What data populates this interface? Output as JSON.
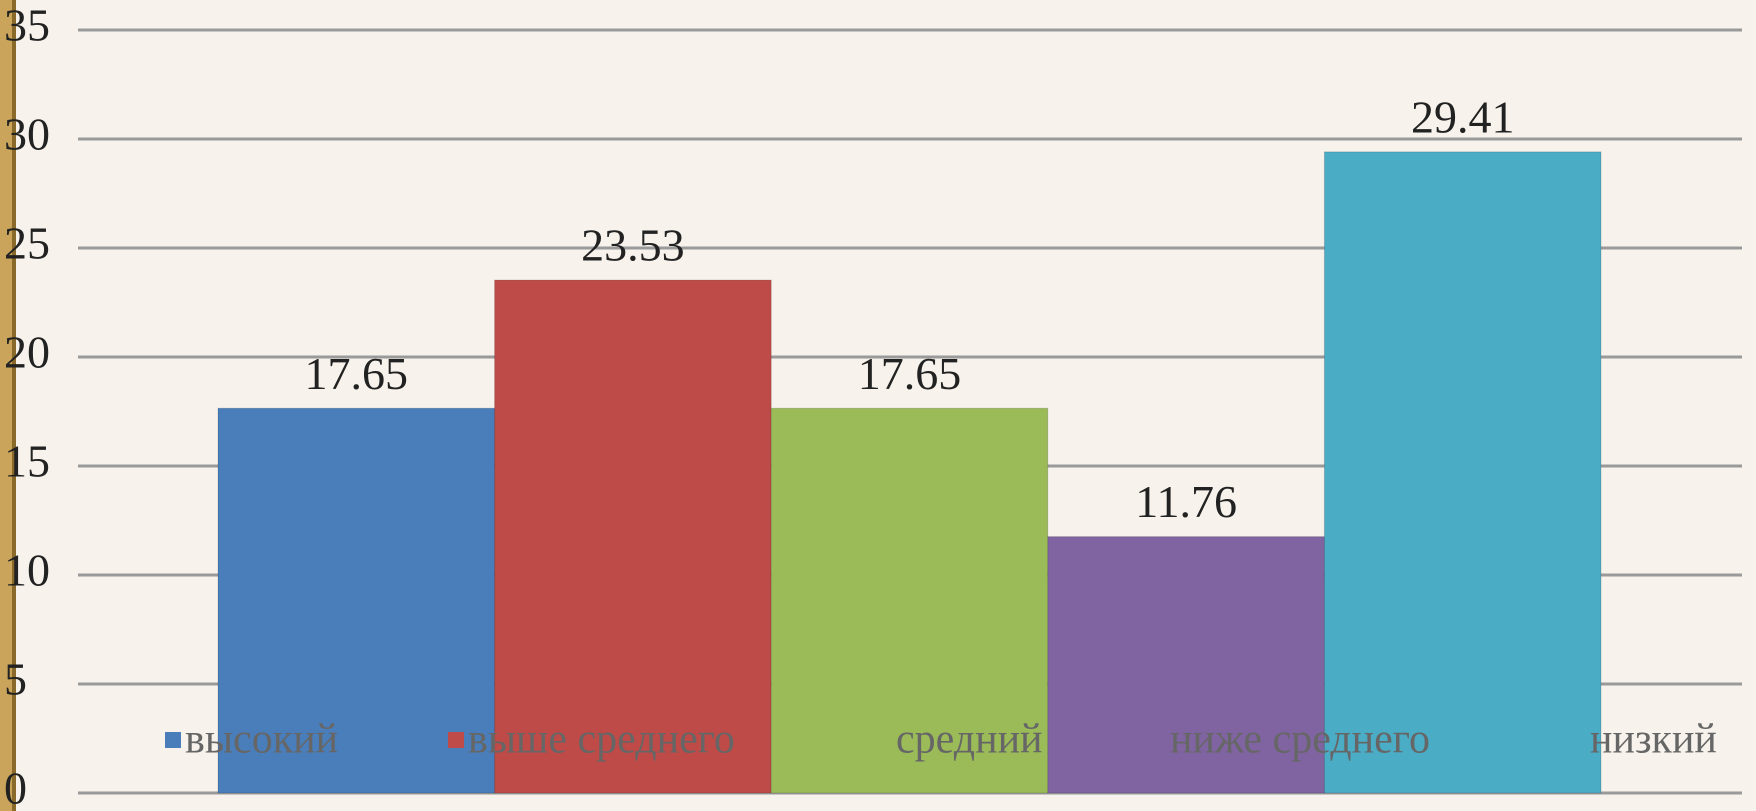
{
  "chart_data": {
    "type": "bar",
    "series": [
      {
        "name": "высокий",
        "color": "#4a7ebb",
        "values": [
          17.65
        ]
      },
      {
        "name": "выше среднего",
        "color": "#be4b48",
        "values": [
          23.53
        ]
      },
      {
        "name": "средний",
        "color": "#9bbb59",
        "values": [
          17.65
        ]
      },
      {
        "name": "ниже среднего",
        "color": "#8064a2",
        "values": [
          11.76
        ]
      },
      {
        "name": "низкий",
        "color": "#4bacc6",
        "values": [
          29.41
        ]
      }
    ],
    "ylim": [
      0,
      35
    ],
    "yticks": [
      0,
      5,
      10,
      15,
      20,
      25,
      30,
      35
    ],
    "grid": true,
    "legend": "bottom"
  }
}
